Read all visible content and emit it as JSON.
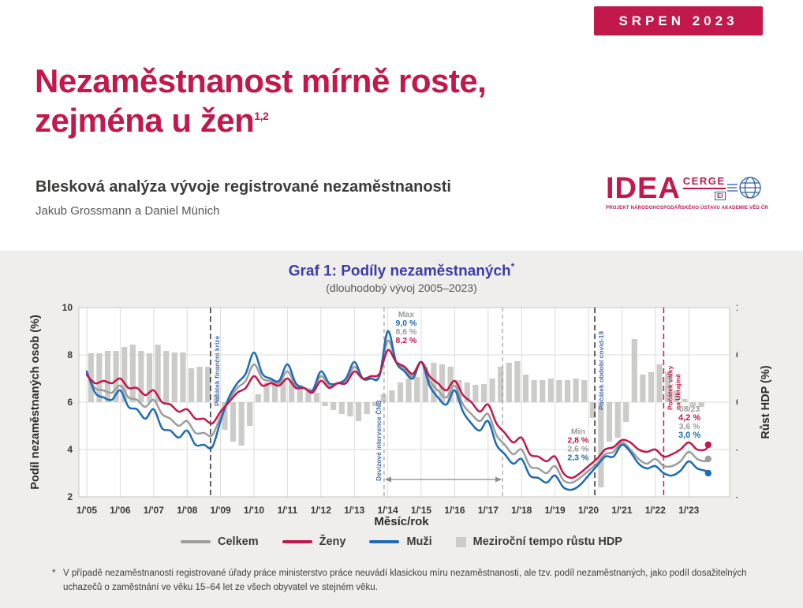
{
  "badge": {
    "label": "SRPEN 2023"
  },
  "header": {
    "title_line1": "Nezaměstnanost mírně roste,",
    "title_line2": "zejména u žen",
    "title_superscript": "1,2",
    "subtitle": "Blesková analýza vývoje registrované nezaměstnanosti",
    "authors": "Jakub Grossmann a Daniel Münich"
  },
  "logo": {
    "idea": "IDEA",
    "cerge": "CERGE",
    "ei": "EI",
    "tagline": "PROJEKT NÁRODOHOSPODÁŘSKÉHO ÚSTAVU AKADEMIE VĚD ČR"
  },
  "chart": {
    "title": "Graf 1: Podíly nezaměstnaných",
    "title_marker": "*",
    "subtitle": "(dlouhodobý vývoj 2005–2023)",
    "y_left_label": "Podíl nezaměstnaných osob (%)",
    "y_right_label": "Růst HDP (%)",
    "x_label": "Měsíc/rok"
  },
  "chart_data": {
    "type": "line",
    "x_start_year": 2005,
    "x_step_years": 0.25,
    "x_end": "2023.58 (08/23)",
    "x_ticks": [
      "1/'05",
      "1/'06",
      "1/'07",
      "1/'08",
      "1/'09",
      "1/'10",
      "1/'11",
      "1/'12",
      "1/'13",
      "1/'14",
      "1/'15",
      "1/'16",
      "1/'17",
      "1/'18",
      "1/'19",
      "1/'20",
      "1/'21",
      "1/'22",
      "1/'23"
    ],
    "y_left": {
      "min": 2,
      "max": 10,
      "ticks": [
        10,
        8,
        6,
        4,
        2
      ]
    },
    "y_right": {
      "min": -12,
      "max": 12,
      "ticks": [
        12,
        6,
        0,
        -6,
        -12
      ]
    },
    "series": [
      {
        "id": "celkem",
        "name": "Celkem",
        "color": "#9d9d9c",
        "values": [
          7.2,
          6.6,
          6.5,
          6.4,
          6.7,
          6.2,
          6.1,
          5.8,
          6.1,
          5.5,
          5.3,
          5.0,
          5.2,
          4.7,
          4.7,
          4.6,
          5.4,
          6.1,
          6.6,
          6.9,
          7.6,
          7.0,
          6.9,
          6.8,
          7.3,
          6.7,
          6.6,
          6.5,
          7.1,
          6.7,
          6.8,
          6.9,
          7.5,
          7.0,
          7.0,
          7.1,
          8.6,
          7.7,
          7.4,
          7.1,
          7.7,
          6.9,
          6.5,
          6.2,
          6.7,
          5.9,
          5.5,
          5.2,
          5.5,
          4.6,
          4.2,
          3.8,
          4.0,
          3.3,
          3.2,
          3.0,
          3.3,
          2.7,
          2.6,
          2.8,
          3.1,
          3.4,
          3.8,
          3.9,
          4.3,
          4.0,
          3.6,
          3.4,
          3.6,
          3.3,
          3.3,
          3.5,
          3.9,
          3.6,
          3.5,
          3.6
        ]
      },
      {
        "id": "muzi",
        "name": "Muži",
        "color": "#1e6cb5",
        "values": [
          7.3,
          6.4,
          6.2,
          6.1,
          6.5,
          5.8,
          5.7,
          5.3,
          5.7,
          4.9,
          4.8,
          4.5,
          4.8,
          4.2,
          4.2,
          4.1,
          5.2,
          6.2,
          6.8,
          7.2,
          8.1,
          7.2,
          7.0,
          6.9,
          7.6,
          6.8,
          6.6,
          6.5,
          7.3,
          6.8,
          6.8,
          7.0,
          7.7,
          7.0,
          7.0,
          7.1,
          9.0,
          7.7,
          7.3,
          7.0,
          7.7,
          6.7,
          6.2,
          5.9,
          6.5,
          5.6,
          5.1,
          4.8,
          5.2,
          4.2,
          3.8,
          3.4,
          3.6,
          2.9,
          2.8,
          2.6,
          2.9,
          2.4,
          2.3,
          2.5,
          2.9,
          3.3,
          3.7,
          3.7,
          4.2,
          3.9,
          3.4,
          3.2,
          3.3,
          3.0,
          2.9,
          3.1,
          3.5,
          3.2,
          3.1,
          3.0
        ]
      },
      {
        "id": "zeny",
        "name": "Ženy",
        "color": "#c2184b",
        "values": [
          7.15,
          6.8,
          6.9,
          6.8,
          7.0,
          6.6,
          6.6,
          6.3,
          6.5,
          6.0,
          5.9,
          5.6,
          5.7,
          5.3,
          5.3,
          5.1,
          5.6,
          6.0,
          6.4,
          6.6,
          7.1,
          6.7,
          6.8,
          6.7,
          7.0,
          6.6,
          6.6,
          6.4,
          6.9,
          6.6,
          6.8,
          6.8,
          7.3,
          7.0,
          7.1,
          7.2,
          8.2,
          7.7,
          7.5,
          7.2,
          7.7,
          7.1,
          6.8,
          6.5,
          6.9,
          6.3,
          6.0,
          5.6,
          5.9,
          5.1,
          4.7,
          4.3,
          4.5,
          3.8,
          3.7,
          3.5,
          3.7,
          3.0,
          2.8,
          3.0,
          3.3,
          3.6,
          4.0,
          4.1,
          4.4,
          4.3,
          4.0,
          3.9,
          4.0,
          3.7,
          3.8,
          4.0,
          4.3,
          4.0,
          4.0,
          4.2
        ]
      }
    ],
    "bars": {
      "name": "Meziroční tempo růstu HDP",
      "color": "#cbcbca",
      "axis": "right",
      "values": [
        6.2,
        6.2,
        6.5,
        6.5,
        7.0,
        7.3,
        6.5,
        6.2,
        7.3,
        6.5,
        6.3,
        6.3,
        4.3,
        4.5,
        4.5,
        1.0,
        -3.5,
        -5.0,
        -5.5,
        -3.0,
        1.0,
        2.5,
        2.8,
        3.0,
        2.8,
        2.2,
        1.8,
        1.2,
        -0.5,
        -1.0,
        -1.5,
        -1.8,
        -2.4,
        -1.5,
        -0.5,
        1.0,
        1.5,
        2.5,
        3.0,
        3.2,
        4.5,
        5.0,
        4.8,
        4.5,
        2.8,
        2.5,
        2.2,
        2.3,
        3.0,
        4.5,
        5.0,
        5.2,
        3.5,
        2.8,
        2.8,
        3.0,
        2.8,
        2.8,
        3.0,
        2.8,
        -2.0,
        -10.8,
        -5.0,
        -4.5,
        -2.5,
        8.0,
        3.5,
        3.8,
        4.8,
        3.8,
        1.5,
        0.4,
        -0.5,
        -0.6
      ]
    },
    "events": [
      {
        "id": "fin-crisis",
        "label": "Počátek finanční krize",
        "t": 2008.7,
        "line": "black",
        "label_color": "#4a6fae",
        "side": "right"
      },
      {
        "id": "cnb",
        "label": "Devizové intervence ČNB",
        "t": 2013.89,
        "t_end": 2017.43,
        "line": "gray",
        "label_color": "#4a6fae",
        "side": "left"
      },
      {
        "id": "covid",
        "label": "Počátek období covid-19",
        "t": 2020.19,
        "line": "black",
        "label_color": "#4a6fae",
        "side": "right"
      },
      {
        "id": "ukraine",
        "label": "Počátek války\nna Ukrajině",
        "t": 2022.25,
        "line": "red",
        "label_color": "#c2184b",
        "side": "right"
      }
    ],
    "annotations": [
      {
        "id": "max",
        "title": "Max",
        "t": 2014.55,
        "v": 9.6,
        "lines": [
          {
            "text": "9,0 %",
            "series": "muzi"
          },
          {
            "text": "8,6 %",
            "series": "celkem"
          },
          {
            "text": "8,2 %",
            "series": "zeny"
          }
        ]
      },
      {
        "id": "min",
        "title": "Min",
        "t": 2019.69,
        "v": 4.65,
        "lines": [
          {
            "text": "2,8 %",
            "series": "zeny"
          },
          {
            "text": "2,6 %",
            "series": "celkem"
          },
          {
            "text": "2,3 %",
            "series": "muzi"
          }
        ]
      },
      {
        "id": "last",
        "title": "08/23",
        "t": 2023.02,
        "v": 5.6,
        "lines": [
          {
            "text": "4,2 %",
            "series": "zeny",
            "bold": true
          },
          {
            "text": "3,6 %",
            "series": "celkem"
          },
          {
            "text": "3,0 %",
            "series": "muzi",
            "bold": true
          }
        ]
      }
    ]
  },
  "legend": {
    "items": [
      {
        "id": "celkem",
        "label": "Celkem",
        "type": "line",
        "color": "#9d9d9c"
      },
      {
        "id": "zeny",
        "label": "Ženy",
        "type": "line",
        "color": "#c2184b"
      },
      {
        "id": "muzi",
        "label": "Muži",
        "type": "line",
        "color": "#1e6cb5"
      },
      {
        "id": "hdp",
        "label": "Meziroční tempo růstu HDP",
        "type": "bar",
        "color": "#cbcbca"
      }
    ]
  },
  "footnote": {
    "marker": "*",
    "text": "V případě nezaměstnanosti registrované úřady práce ministerstvo práce neuvádí klasickou míru nezaměstnanosti, ale tzv. podíl nezaměstnaných, jako podíl dosažitelných uchazečů o zaměstnání ve věku 15–64 let ze všech obyvatel ve stejném věku."
  },
  "colors": {
    "brand_red": "#c2184b",
    "chart_title_blue": "#3d3da6",
    "panel_background": "#efeeec",
    "event_label_blue": "#4a6fae"
  }
}
